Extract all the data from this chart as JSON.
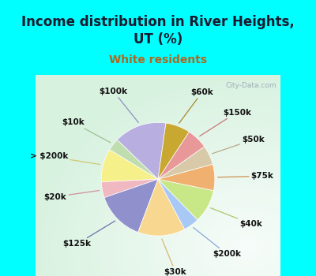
{
  "title": "Income distribution in River Heights,\nUT (%)",
  "subtitle": "White residents",
  "title_color": "#1a1a2e",
  "subtitle_color": "#b06820",
  "bg_cyan": "#00ffff",
  "bg_chart_color": "#d0ede0",
  "watermark": "City-Data.com",
  "labels": [
    "$100k",
    "$10k",
    "> $200k",
    "$20k",
    "$125k",
    "$30k",
    "$200k",
    "$40k",
    "$75k",
    "$50k",
    "$150k",
    "$60k"
  ],
  "values": [
    15.0,
    3.5,
    9.5,
    4.5,
    14.0,
    13.5,
    4.5,
    9.5,
    7.5,
    5.5,
    6.0,
    7.0
  ],
  "colors": [
    "#b8aee0",
    "#c0ddb0",
    "#f5f08a",
    "#f0b8c0",
    "#9090cc",
    "#f8d890",
    "#a8c8f5",
    "#c8e888",
    "#f0b070",
    "#d8caa8",
    "#e89898",
    "#c8a830"
  ],
  "line_colors": [
    "#9090c0",
    "#a0c090",
    "#d0c870",
    "#d090a0",
    "#7070aa",
    "#d8b870",
    "#88a8d8",
    "#a8c868",
    "#d09050",
    "#b8aa88",
    "#c87878",
    "#a88828"
  ],
  "startangle": 82,
  "figsize": [
    4.0,
    3.5
  ],
  "dpi": 100,
  "title_fontsize": 12,
  "subtitle_fontsize": 10,
  "label_fontsize": 7.5
}
